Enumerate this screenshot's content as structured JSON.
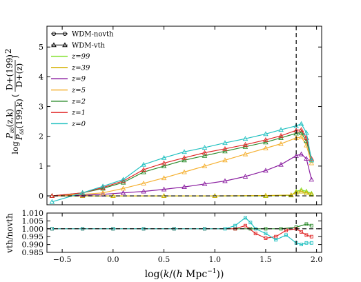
{
  "chart_data": [
    {
      "type": "line",
      "xlim": [
        -0.65,
        2.05
      ],
      "ylim": [
        -0.3,
        5.7
      ],
      "xticks": [
        -0.5,
        0.0,
        0.5,
        1.0,
        1.5,
        2.0
      ],
      "yticks": [
        0,
        1,
        2,
        3,
        4,
        5
      ],
      "ytick_labels": [
        "0",
        "1",
        "2",
        "3",
        "4",
        "5"
      ],
      "ylabel": "log( P_δδ(z,k) / P_δδ(199,k) · (D+(199)/D+(z))² )",
      "ylabel_parts": {
        "prefix": "log",
        "num": "P",
        "num_sub": "δδ",
        "num_arg": "(z,k)",
        "den": "P",
        "den_sub": "δδ",
        "den_arg": "(199,k)",
        "dnum": "D+(199)",
        "dden": "D+(z)",
        "exp": "2"
      },
      "vline_x": 1.8,
      "hline_y": 0,
      "legend_position": "upper-left",
      "legend": [
        {
          "label": "WDM-novth",
          "marker": "circle",
          "color": "#000000"
        },
        {
          "label": "WDM-vth",
          "marker": "triangle",
          "color": "#000000"
        },
        {
          "label": "z=99",
          "color": "#7fe02a"
        },
        {
          "label": "z=39",
          "color": "#d4b000"
        },
        {
          "label": "z=9",
          "color": "#8a1ea0"
        },
        {
          "label": "z=5",
          "color": "#f5b030"
        },
        {
          "label": "z=2",
          "color": "#2a8a2a"
        },
        {
          "label": "z=1",
          "color": "#e02828"
        },
        {
          "label": "z=0",
          "color": "#20c0c0"
        }
      ],
      "series": [
        {
          "name": "z=99",
          "color": "#7fe02a",
          "x": [
            -0.6,
            -0.3,
            0.0,
            0.5,
            1.0,
            1.5,
            1.75,
            1.8,
            1.85,
            1.9,
            1.95
          ],
          "y": [
            0,
            0,
            0,
            0,
            0,
            0,
            0.02,
            0.15,
            0.2,
            0.15,
            0.08
          ]
        },
        {
          "name": "z=39",
          "color": "#d4b000",
          "x": [
            -0.6,
            -0.3,
            0.0,
            0.5,
            1.0,
            1.5,
            1.75,
            1.8,
            1.85,
            1.9,
            1.95
          ],
          "y": [
            0,
            0,
            0,
            0,
            0,
            0.01,
            0.03,
            0.12,
            0.15,
            0.1,
            0.05
          ]
        },
        {
          "name": "z=9",
          "color": "#8a1ea0",
          "x": [
            -0.6,
            -0.3,
            -0.1,
            0.1,
            0.3,
            0.5,
            0.7,
            0.9,
            1.1,
            1.3,
            1.5,
            1.65,
            1.8,
            1.85,
            1.9,
            1.95
          ],
          "y": [
            0,
            0.02,
            0.05,
            0.1,
            0.15,
            0.22,
            0.3,
            0.4,
            0.5,
            0.65,
            0.85,
            1.05,
            1.35,
            1.4,
            1.25,
            0.55
          ]
        },
        {
          "name": "z=5",
          "color": "#f5b030",
          "x": [
            -0.6,
            -0.3,
            -0.1,
            0.1,
            0.3,
            0.5,
            0.7,
            0.9,
            1.1,
            1.3,
            1.5,
            1.65,
            1.8,
            1.85,
            1.9,
            1.95
          ],
          "y": [
            0,
            0.05,
            0.1,
            0.25,
            0.42,
            0.6,
            0.8,
            1.0,
            1.2,
            1.4,
            1.6,
            1.75,
            1.95,
            1.98,
            1.7,
            1.1
          ]
        },
        {
          "name": "z=2",
          "color": "#2a8a2a",
          "x": [
            -0.6,
            -0.3,
            -0.1,
            0.1,
            0.3,
            0.5,
            0.7,
            0.9,
            1.1,
            1.3,
            1.5,
            1.65,
            1.8,
            1.85,
            1.9,
            1.95
          ],
          "y": [
            0,
            0.1,
            0.25,
            0.45,
            0.8,
            1.0,
            1.2,
            1.35,
            1.5,
            1.65,
            1.8,
            1.95,
            2.1,
            2.12,
            1.85,
            1.2
          ]
        },
        {
          "name": "z=1",
          "color": "#e02828",
          "x": [
            -0.6,
            -0.3,
            -0.1,
            0.1,
            0.3,
            0.5,
            0.7,
            0.9,
            1.1,
            1.3,
            1.5,
            1.65,
            1.8,
            1.85,
            1.9,
            1.95
          ],
          "y": [
            0,
            0.1,
            0.28,
            0.5,
            0.88,
            1.1,
            1.28,
            1.45,
            1.58,
            1.72,
            1.88,
            2.02,
            2.2,
            2.22,
            1.95,
            1.25
          ]
        },
        {
          "name": "z=0",
          "color": "#20c0c0",
          "x": [
            -0.6,
            -0.3,
            -0.1,
            0.1,
            0.3,
            0.5,
            0.7,
            0.9,
            1.1,
            1.3,
            1.5,
            1.65,
            1.8,
            1.85,
            1.9,
            1.95
          ],
          "y": [
            -0.2,
            0.1,
            0.32,
            0.55,
            1.05,
            1.28,
            1.48,
            1.62,
            1.78,
            1.92,
            2.08,
            2.22,
            2.35,
            2.42,
            2.12,
            1.2
          ]
        }
      ]
    },
    {
      "type": "line",
      "xlim": [
        -0.65,
        2.05
      ],
      "ylim": [
        0.985,
        1.01
      ],
      "xticks": [
        -0.5,
        0.0,
        0.5,
        1.0,
        1.5,
        2.0
      ],
      "xtick_labels": [
        "−0.5",
        "0.0",
        "0.5",
        "1.0",
        "1.5",
        "2.0"
      ],
      "yticks": [
        0.985,
        0.99,
        0.995,
        1.0,
        1.005,
        1.01
      ],
      "ytick_labels": [
        "0.985",
        "0.990",
        "0.995",
        "1.000",
        "1.005",
        "1.010"
      ],
      "ylabel": "vth/novth",
      "xlabel": "log(k/(h Mpc⁻¹))",
      "xlabel_parts": {
        "prefix": "log(",
        "k": "k",
        "slash": "/(",
        "h": "h",
        "unit": " Mpc",
        "exp": "−1",
        "suffix": "))"
      },
      "vline_x": 1.8,
      "hline_y": 1.0,
      "series": [
        {
          "name": "z=2",
          "color": "#2a8a2a",
          "x": [
            -0.6,
            -0.3,
            0.0,
            0.3,
            0.6,
            0.9,
            1.2,
            1.35,
            1.5,
            1.65,
            1.8,
            1.9,
            1.95
          ],
          "y": [
            1.0,
            1.0,
            1.0,
            1.0,
            1.0,
            1.0,
            1.0,
            1.0,
            1.0,
            1.0,
            1.001,
            1.003,
            1.002
          ]
        },
        {
          "name": "z=1",
          "color": "#e02828",
          "x": [
            -0.6,
            -0.3,
            0.0,
            0.3,
            0.6,
            0.9,
            1.2,
            1.3,
            1.4,
            1.5,
            1.6,
            1.7,
            1.8,
            1.85,
            1.9,
            1.95
          ],
          "y": [
            1.0,
            1.0,
            1.0,
            1.0,
            1.0,
            1.0,
            1.0,
            1.002,
            0.997,
            0.994,
            0.995,
            0.999,
            1.0,
            0.998,
            0.996,
            0.995
          ]
        },
        {
          "name": "z=0",
          "color": "#20c0c0",
          "x": [
            -0.6,
            -0.3,
            0.0,
            0.3,
            0.6,
            0.9,
            1.1,
            1.2,
            1.3,
            1.35,
            1.4,
            1.5,
            1.6,
            1.7,
            1.8,
            1.85,
            1.9,
            1.95
          ],
          "y": [
            1.0,
            1.0,
            1.0,
            1.0,
            1.0,
            1.0,
            1.0,
            1.002,
            1.007,
            1.004,
            1.0,
            0.997,
            0.993,
            0.996,
            0.991,
            0.99,
            0.991,
            0.991
          ]
        }
      ]
    }
  ]
}
